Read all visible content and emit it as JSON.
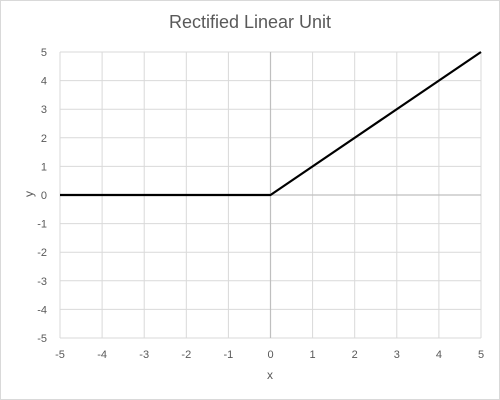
{
  "chart_data": {
    "type": "line",
    "title": "Rectified Linear Unit",
    "xlabel": "x",
    "ylabel": "y",
    "xlim": [
      -5,
      5
    ],
    "ylim": [
      -5,
      5
    ],
    "xticks": [
      "-5",
      "-4",
      "-3",
      "-2",
      "-1",
      "0",
      "1",
      "2",
      "3",
      "4",
      "5"
    ],
    "yticks": [
      "-5",
      "-4",
      "-3",
      "-2",
      "-1",
      "0",
      "1",
      "2",
      "3",
      "4",
      "5"
    ],
    "grid": true,
    "legend": "none",
    "series": [
      {
        "x": [
          -5,
          0,
          5
        ],
        "y": [
          0,
          0,
          5
        ],
        "color": "#000000"
      }
    ],
    "colors": {
      "grid": "#d9d9d9",
      "axis": "#bfbfbf",
      "text": "#595959"
    }
  }
}
